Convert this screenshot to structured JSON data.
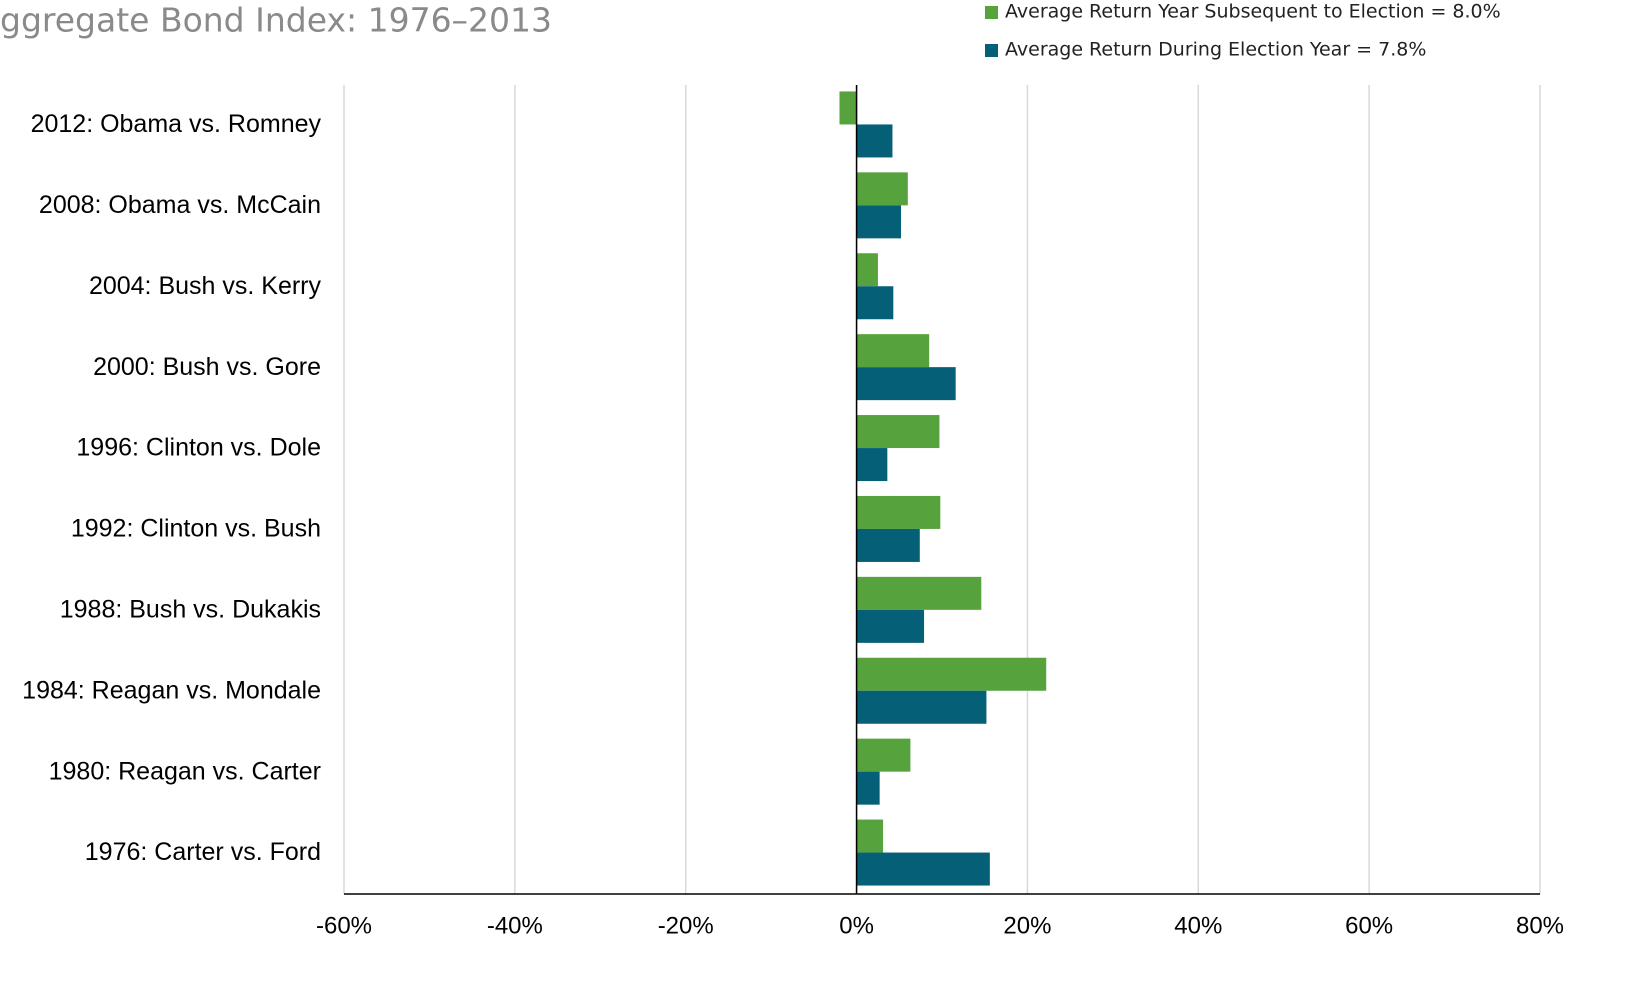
{
  "chart_data": {
    "type": "bar",
    "orientation": "horizontal",
    "title": "ggregate Bond Index: 1976–2013",
    "categories": [
      "2012: Obama vs. Romney",
      "2008: Obama vs. McCain",
      "2004: Bush vs. Kerry",
      "2000: Bush vs. Gore",
      "1996: Clinton vs. Dole",
      "1992: Clinton vs. Bush",
      "1988: Bush vs. Dukakis",
      "1984: Reagan vs. Mondale",
      "1980: Reagan vs. Carter",
      "1976: Carter vs. Ford"
    ],
    "series": [
      {
        "name": "Average Return Year Subsequent to Election = 8.0%",
        "color": "#56a23c",
        "values": [
          -2.0,
          6.0,
          2.5,
          8.5,
          9.7,
          9.8,
          14.6,
          22.2,
          6.3,
          3.1
        ]
      },
      {
        "name": "Average Return During Election Year = 7.8%",
        "color": "#045f77",
        "values": [
          4.2,
          5.2,
          4.3,
          11.6,
          3.6,
          7.4,
          7.9,
          15.2,
          2.7,
          15.6
        ]
      }
    ],
    "xlim": [
      -60,
      80
    ],
    "xticks": [
      {
        "value": -60,
        "label": "-60%"
      },
      {
        "value": -40,
        "label": "-40%"
      },
      {
        "value": -20,
        "label": "-20%"
      },
      {
        "value": 0,
        "label": "0%"
      },
      {
        "value": 20,
        "label": "20%"
      },
      {
        "value": 40,
        "label": "40%"
      },
      {
        "value": 60,
        "label": "60%"
      },
      {
        "value": 80,
        "label": "80%"
      }
    ],
    "grid": true,
    "legend": "top-right"
  }
}
